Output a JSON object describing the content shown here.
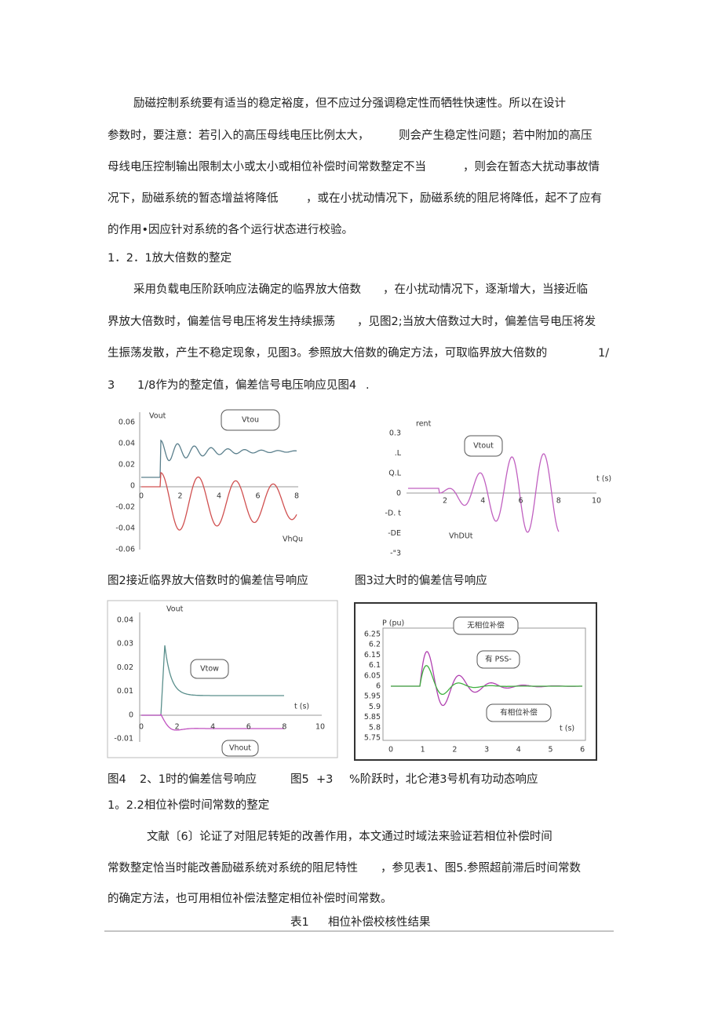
{
  "para1": [
    [
      "励磁控制系统要有适当的稳定裕度，但不应过分强调稳定性而牺牲快速性。所以在设计"
    ],
    [
      "参数时，要注意：若引入的高压母线电压比例太大，",
      "则会产生稳定性问题；若中附加的高压"
    ],
    [
      "母线电压控制输出限制太小或太小或相位补偿时间常数整定不当",
      "，则会在暂态大扰动事故情"
    ],
    [
      "况下，励磁系统的暂态增益将降低",
      "，或在小扰动情况下，励磁系统的阻尼将降低，起不了应有"
    ],
    [
      "的作用•因应针对系统的各个运行状态进行校验。"
    ]
  ],
  "heading1": "1．2．1放大倍数的整定",
  "para2": [
    [
      "采用负载电压阶跃响应法确定的临界放大倍数",
      "，在小扰动情况下，逐渐增大，当接近临"
    ],
    [
      "界放大倍数时，偏差信号电压将发生持续振荡",
      "，见图2;当放大倍数过大时，偏差信号电压将发"
    ],
    [
      "生振荡发散，产生不稳定现象，见图3。参照放大倍数的确定方法，可取临界放大倍数的",
      "1/"
    ],
    [
      "3",
      "1/8作为的整定值，偏差信号电压响应见图4",
      "."
    ]
  ],
  "figures": [
    {
      "axis_label": "Vout",
      "yticks": [
        "0.06",
        "0.04",
        "0.02",
        "0",
        "-0.02",
        "-0.04",
        "-0.06"
      ],
      "xticks": [
        "0",
        "2",
        "4",
        "6",
        "8"
      ],
      "callouts": [
        "Vtou",
        "VhQu"
      ],
      "caption": [
        "图2接近临界放大倍数时的偏差信号响应"
      ]
    },
    {
      "axis_label": "rent",
      "yticks": [
        "0.3",
        ".L",
        "Q.L",
        "0",
        "-D. t",
        "-DE",
        "-\"3"
      ],
      "xticks": [
        "2",
        "4",
        "6",
        "8",
        "10"
      ],
      "x_label": "t (s)",
      "callouts": [
        "Vtout",
        "VhDUt"
      ],
      "caption": [
        "图3过大时的偏差信号响应"
      ]
    },
    {
      "axis_label": "Vout",
      "yticks": [
        "0.04",
        "0.03",
        "0.02",
        "0.01",
        "0",
        "-0.01"
      ],
      "xticks": [
        "0",
        "2",
        "4",
        "6",
        "8",
        "10"
      ],
      "x_label": "t (s)",
      "callouts": [
        "Vtow",
        "Vhout"
      ],
      "caption": [
        "图4",
        "2、1时的偏差信号响应"
      ]
    },
    {
      "axis_label": "P (pu)",
      "yticks": [
        "6.25",
        "6.2",
        "6.15",
        "6.1",
        "6.05",
        "6",
        "5.95",
        "5.9",
        "5.85",
        "5.8",
        "5.75"
      ],
      "xticks": [
        "0",
        "1",
        "2",
        "3",
        "4",
        "5",
        "6"
      ],
      "x_label": "t (s)",
      "callouts": [
        "无相位补偿",
        "有 PSS-",
        "有相位补偿"
      ],
      "caption": [
        "图5",
        "+3",
        "%阶跃时，北仑港3号机有功动态响应"
      ]
    }
  ],
  "heading2": "1。2.2相位补偿时间常数的整定",
  "para3": [
    [
      "文献〔6〕论证了对阻尼转矩的改善作用，本文通过时域法来验证若相位补偿时间"
    ],
    [
      "常数整定恰当时能改善励磁系统对系统的阻尼特性",
      "，参见表1、图5.参照超前滞后时间常数"
    ],
    [
      "的确定方法，也可用相位补偿法整定相位补偿时间常数。"
    ]
  ],
  "table_caption": {
    "label": "表1",
    "title": "相位补偿校核性结果"
  }
}
